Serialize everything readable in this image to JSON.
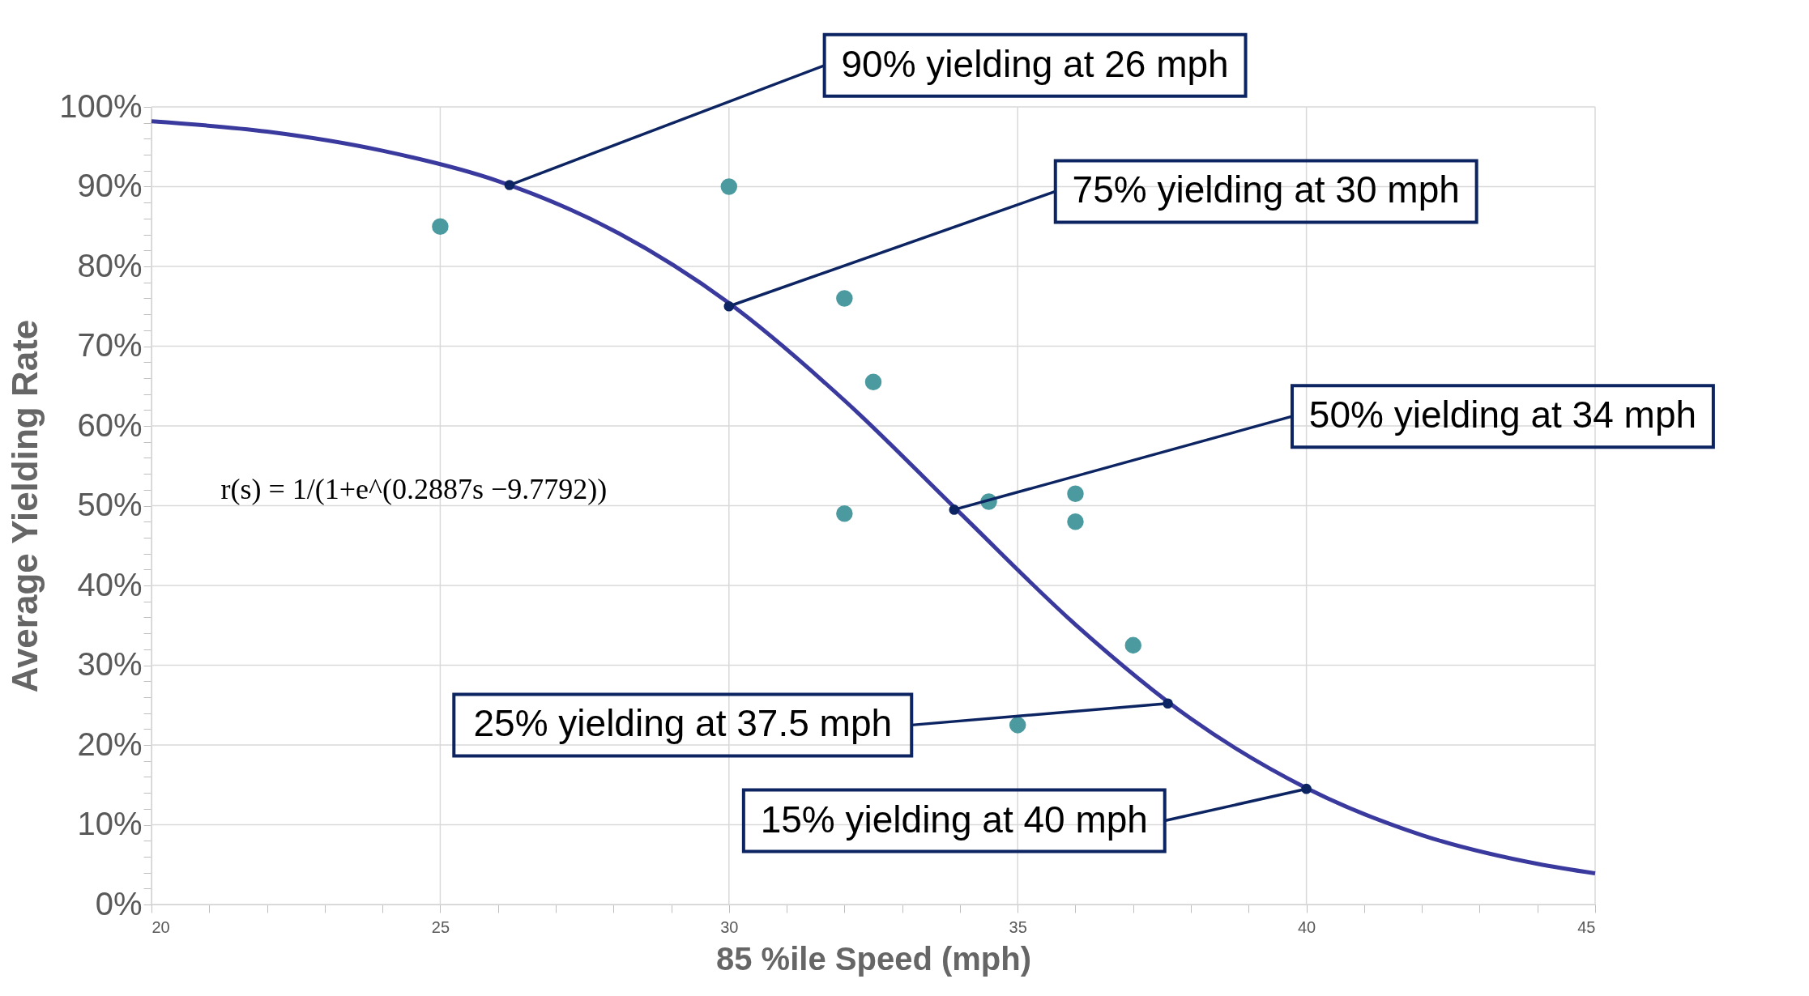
{
  "chart_data": {
    "type": "line",
    "xlabel": "85 %ile Speed (mph)",
    "ylabel": "Average Yielding Rate",
    "xlim": [
      20,
      45
    ],
    "ylim": [
      0,
      100
    ],
    "xticks": [
      20,
      {
        "value": 21,
        "label": null
      },
      {
        "value": 22,
        "label": null
      },
      {
        "value": 23,
        "label": null
      },
      {
        "value": 24,
        "label": null
      },
      25,
      {
        "value": 26,
        "label": null
      },
      {
        "value": 27,
        "label": null
      },
      {
        "value": 28,
        "label": null
      },
      {
        "value": 29,
        "label": null
      },
      30,
      {
        "value": 31,
        "label": null
      },
      {
        "value": 32,
        "label": null
      },
      {
        "value": 33,
        "label": null
      },
      {
        "value": 34,
        "label": null
      },
      35,
      {
        "value": 36,
        "label": null
      },
      {
        "value": 37,
        "label": null
      },
      {
        "value": 38,
        "label": null
      },
      {
        "value": 39,
        "label": null
      },
      40,
      {
        "value": 41,
        "label": null
      },
      {
        "value": 42,
        "label": null
      },
      {
        "value": 43,
        "label": null
      },
      {
        "value": 44,
        "label": null
      },
      45
    ],
    "yticks": [
      {
        "value": 0,
        "label": "0%"
      },
      {
        "value": 2,
        "label": null
      },
      {
        "value": 4,
        "label": null
      },
      {
        "value": 6,
        "label": null
      },
      {
        "value": 8,
        "label": null
      },
      {
        "value": 10,
        "label": "10%"
      },
      {
        "value": 12,
        "label": null
      },
      {
        "value": 14,
        "label": null
      },
      {
        "value": 16,
        "label": null
      },
      {
        "value": 18,
        "label": null
      },
      {
        "value": 20,
        "label": "20%"
      },
      {
        "value": 22,
        "label": null
      },
      {
        "value": 24,
        "label": null
      },
      {
        "value": 26,
        "label": null
      },
      {
        "value": 28,
        "label": null
      },
      {
        "value": 30,
        "label": "30%"
      },
      {
        "value": 32,
        "label": null
      },
      {
        "value": 34,
        "label": null
      },
      {
        "value": 36,
        "label": null
      },
      {
        "value": 38,
        "label": null
      },
      {
        "value": 40,
        "label": "40%"
      },
      {
        "value": 42,
        "label": null
      },
      {
        "value": 44,
        "label": null
      },
      {
        "value": 46,
        "label": null
      },
      {
        "value": 48,
        "label": null
      },
      {
        "value": 50,
        "label": "50%"
      },
      {
        "value": 52,
        "label": null
      },
      {
        "value": 54,
        "label": null
      },
      {
        "value": 56,
        "label": null
      },
      {
        "value": 58,
        "label": null
      },
      {
        "value": 60,
        "label": "60%"
      },
      {
        "value": 62,
        "label": null
      },
      {
        "value": 64,
        "label": null
      },
      {
        "value": 66,
        "label": null
      },
      {
        "value": 68,
        "label": null
      },
      {
        "value": 70,
        "label": "70%"
      },
      {
        "value": 72,
        "label": null
      },
      {
        "value": 74,
        "label": null
      },
      {
        "value": 76,
        "label": null
      },
      {
        "value": 78,
        "label": null
      },
      {
        "value": 80,
        "label": "80%"
      },
      {
        "value": 82,
        "label": null
      },
      {
        "value": 84,
        "label": null
      },
      {
        "value": 86,
        "label": null
      },
      {
        "value": 88,
        "label": null
      },
      {
        "value": 90,
        "label": "90%"
      },
      {
        "value": 92,
        "label": null
      },
      {
        "value": 94,
        "label": null
      },
      {
        "value": 96,
        "label": null
      },
      {
        "value": 98,
        "label": null
      },
      {
        "value": 100,
        "label": "100%"
      }
    ],
    "grid": true,
    "series": [
      {
        "color": "#3a3a9e",
        "line_style": "solid",
        "marker": "none",
        "x": [
          20,
          22,
          24,
          26,
          28,
          30,
          32,
          34,
          36,
          38,
          40,
          42,
          44,
          45
        ],
        "values": [
          98.2,
          96.9,
          94.5,
          90.7,
          84.5,
          75.4,
          63.2,
          49.1,
          35.1,
          23.3,
          14.6,
          8.7,
          5.1,
          3.9
        ]
      },
      {
        "type": "scatter",
        "color": "#4a9aa0",
        "marker": "circle",
        "x": [
          25,
          30,
          32,
          32.5,
          32,
          34.5,
          36,
          36,
          37,
          35
        ],
        "values": [
          85,
          90,
          76,
          65.5,
          49,
          50.5,
          51.5,
          48,
          32.5,
          22.5
        ]
      }
    ],
    "annotations": [
      {
        "text": "90% yielding at 26 mph",
        "x": 26.2,
        "y": 90.2
      },
      {
        "text": "75% yielding at 30 mph",
        "x": 30,
        "y": 75
      },
      {
        "text": "50% yielding at 34 mph",
        "x": 33.9,
        "y": 49.5
      },
      {
        "text": "25% yielding at 37.5 mph",
        "x": 37.6,
        "y": 25.2
      },
      {
        "text": "15% yielding at 40 mph",
        "x": 40,
        "y": 14.5
      },
      "r(s) = 1/(1+e^(0.2887s −9.7792))"
    ]
  }
}
